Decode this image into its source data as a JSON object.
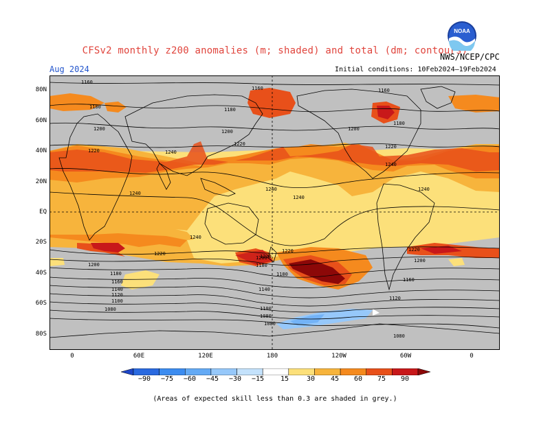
{
  "header": {
    "title": "CFSv2 monthly z200 anomalies (m; shaded) and total (dm; contours)",
    "month": "Aug 2024",
    "initial_conditions": "Initial conditions: 10Feb2024–19Feb2024",
    "agency": "NWS/NCEP/CPC",
    "logo_text": "NOAA"
  },
  "axes": {
    "lat_labels": [
      "80N",
      "60N",
      "40N",
      "20N",
      "EQ",
      "20S",
      "40S",
      "60S",
      "80S"
    ],
    "lon_labels": [
      "0",
      "60E",
      "120E",
      "180",
      "120W",
      "60W",
      "0"
    ]
  },
  "contours": {
    "labels": [
      "1160",
      "1160",
      "1160",
      "1180",
      "1180",
      "1180",
      "1200",
      "1200",
      "1200",
      "1220",
      "1220",
      "1220",
      "1240",
      "1240",
      "1240",
      "1240",
      "1240",
      "1240",
      "1240",
      "1220",
      "1220",
      "1220",
      "1220",
      "1200",
      "1200",
      "1200",
      "1180",
      "1180",
      "1180",
      "1160",
      "1160",
      "1140",
      "1140",
      "1120",
      "1120",
      "1100",
      "1100",
      "1080",
      "1080",
      "1080",
      "1080"
    ]
  },
  "colorbar": {
    "labels": [
      "−90",
      "−75",
      "−60",
      "−45",
      "−30",
      "−15",
      "15",
      "30",
      "45",
      "60",
      "75",
      "90"
    ],
    "colors": [
      "#1e46c8",
      "#2a6ae0",
      "#3c8cf0",
      "#64aaf5",
      "#96c8fa",
      "#c4e2fc",
      "#ffffff",
      "#fce07a",
      "#f7b43c",
      "#f58a1e",
      "#e8501a",
      "#c8181a",
      "#8c0808"
    ]
  },
  "footnote": "(Areas of expected skill less than 0.3 are shaded in grey.)"
}
